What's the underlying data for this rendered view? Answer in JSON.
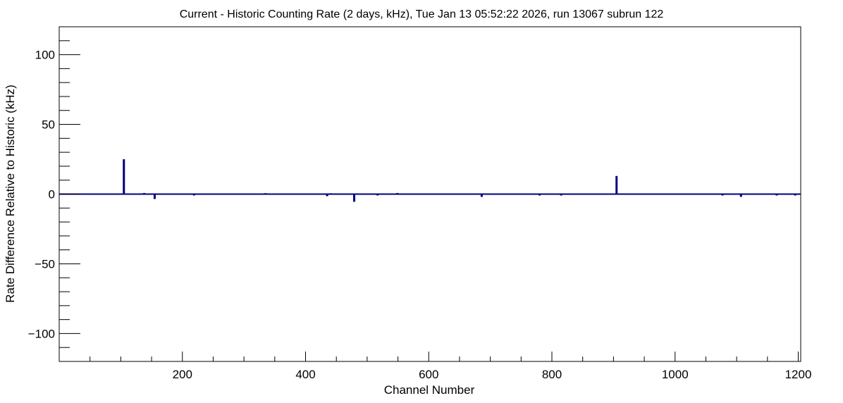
{
  "chart_data": {
    "type": "bar",
    "title": "Current - Historic Counting Rate (2 days, kHz), Tue Jan 13 05:52:22 2026, run 13067 subrun 122",
    "xlabel": "Channel Number",
    "ylabel": "Rate Difference Relative to Historic (kHz)",
    "xlim": [
      0,
      1204
    ],
    "ylim": [
      -120,
      120
    ],
    "x_ticks": [
      200,
      400,
      600,
      800,
      1000,
      1200
    ],
    "x_tick_labels": [
      "200",
      "400",
      "600",
      "800",
      "1000",
      "1200"
    ],
    "y_ticks": [
      -100,
      -50,
      0,
      50,
      100
    ],
    "y_tick_labels": [
      "−100",
      "−50",
      "0",
      "50",
      "100"
    ],
    "grid": false,
    "line_color": "#000080",
    "series": [
      {
        "x": [
          105,
          138,
          155,
          219,
          335,
          435,
          441,
          479,
          517,
          549,
          686,
          780,
          815,
          905,
          1077,
          1107,
          1165,
          1195
        ],
        "values": [
          25,
          0.8,
          -3.5,
          -1,
          0.7,
          -1.5,
          0.6,
          -5.5,
          -1,
          0.8,
          -2,
          -1,
          -1,
          13,
          -1,
          -2,
          -1,
          -1
        ]
      }
    ]
  }
}
